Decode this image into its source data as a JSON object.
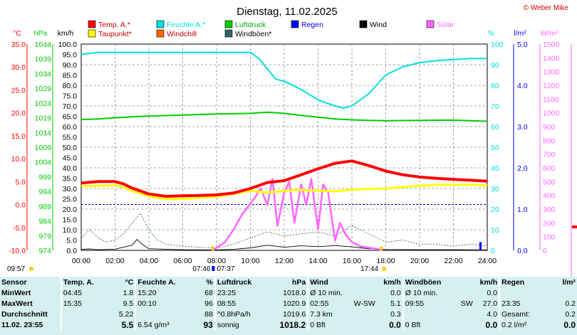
{
  "chart_data": {
    "type": "line",
    "title": "Dienstag, 11.02.2025",
    "credit": "© Weber Mike",
    "x_ticks": [
      "00:00",
      "02:00",
      "04:00",
      "06:00",
      "08:00",
      "10:00",
      "12:00",
      "14:00",
      "16:00",
      "18:00",
      "20:00",
      "22:00",
      "24:00"
    ],
    "xlim": [
      0,
      24
    ],
    "legend": [
      {
        "name": "Temp. A.*",
        "color": "#ff0000"
      },
      {
        "name": "Feuchte A.*",
        "color": "#00e0e0"
      },
      {
        "name": "Luftdruck",
        "color": "#00cc00"
      },
      {
        "name": "Regen",
        "color": "#0000ff"
      },
      {
        "name": "Wind",
        "color": "#000000"
      },
      {
        "name": "Solar",
        "color": "#ff66ff"
      },
      {
        "name": "Taupunkt*",
        "color": "#ffff00"
      },
      {
        "name": "Windchill",
        "color": "#ff6600"
      },
      {
        "name": "Windböen*",
        "color": "#336666"
      }
    ],
    "axes": {
      "temp": {
        "unit": "°C",
        "ticks": [
          "35.0",
          "30.0",
          "25.0",
          "20.0",
          "15.0",
          "10.0",
          "5.0",
          "0.0",
          "-5.0",
          "-10.0"
        ],
        "color": "#ff0000"
      },
      "pressure": {
        "unit": "hPa",
        "ticks": [
          "1044",
          "1039",
          "1034",
          "1029",
          "1024",
          "1019",
          "1014",
          "1009",
          "1004",
          "999",
          "994",
          "989",
          "984",
          "979",
          "974"
        ],
        "color": "#00cc00"
      },
      "wind": {
        "unit": "km/h",
        "ticks": [
          "100.0",
          "95.0",
          "90.0",
          "85.0",
          "80.0",
          "75.0",
          "70.0",
          "65.0",
          "60.0",
          "55.0",
          "50.0",
          "45.0",
          "40.0",
          "35.0",
          "30.0",
          "25.0",
          "20.0",
          "15.0",
          "10.0",
          "5.0",
          "0.0"
        ],
        "color": "#000000"
      },
      "humidity": {
        "unit": "%",
        "ticks": [
          "100",
          "90",
          "80",
          "70",
          "60",
          "50",
          "40",
          "30",
          "20",
          "10",
          "0"
        ],
        "color": "#00e0e0"
      },
      "rain": {
        "unit": "l/m²",
        "ticks": [
          "5.0",
          "4.0",
          "3.0",
          "2.0",
          "1.0",
          "0.0"
        ],
        "color": "#0000ff"
      },
      "solar": {
        "unit": "W/m²",
        "ticks": [
          "1500",
          "1400",
          "1300",
          "1200",
          "1100",
          "1000",
          "900",
          "800",
          "700",
          "600",
          "500",
          "400",
          "300",
          "200",
          "100",
          "0"
        ],
        "color": "#ff66ff"
      }
    },
    "series": [
      {
        "name": "Temp. A.*",
        "axis": "temp",
        "x": [
          0,
          1,
          2,
          2.5,
          3,
          4,
          5,
          6,
          7,
          8,
          9,
          10,
          11,
          12,
          13,
          14,
          15,
          16,
          17,
          18,
          19,
          20,
          21,
          22,
          23,
          24
        ],
        "y": [
          4.7,
          5.0,
          5.0,
          4.5,
          3.6,
          2.3,
          1.8,
          1.9,
          2.0,
          2.1,
          2.5,
          3.5,
          4.8,
          5.2,
          6.5,
          7.8,
          9.0,
          9.5,
          8.5,
          7.3,
          6.5,
          6.0,
          5.7,
          5.5,
          5.3,
          5.1
        ]
      },
      {
        "name": "Taupunkt*",
        "axis": "temp",
        "x": [
          0,
          2,
          2.5,
          3,
          4,
          5,
          6,
          7,
          8,
          9,
          10,
          11,
          12,
          13,
          14,
          15,
          16,
          17,
          18,
          19,
          20,
          21,
          22,
          23,
          24
        ],
        "y": [
          4.0,
          4.2,
          3.8,
          3.0,
          1.8,
          1.2,
          1.2,
          1.5,
          1.7,
          2.3,
          3.0,
          2.6,
          3.0,
          3.2,
          3.0,
          2.9,
          3.2,
          3.4,
          3.5,
          3.8,
          4.1,
          4.3,
          4.3,
          4.3,
          4.2
        ]
      },
      {
        "name": "Feuchte A.*",
        "axis": "humidity",
        "x": [
          0,
          1,
          4,
          8,
          10,
          10.5,
          11,
          11.5,
          12,
          13,
          14,
          15,
          15.5,
          16,
          17,
          18,
          19,
          20,
          21,
          22,
          23,
          24
        ],
        "y": [
          95,
          96,
          96,
          96,
          96,
          93,
          88,
          83,
          82,
          78,
          73,
          70,
          69,
          70,
          76,
          85,
          89,
          91,
          92,
          92.5,
          93,
          93
        ]
      },
      {
        "name": "Luftdruck",
        "axis": "pressure",
        "x": [
          0,
          1,
          2,
          3,
          4,
          6,
          8,
          10,
          11,
          12,
          13,
          14,
          15,
          16,
          17,
          18,
          20,
          22,
          23,
          24
        ],
        "y": [
          1018.4,
          1018.6,
          1019.0,
          1019.3,
          1019.6,
          1019.9,
          1020.3,
          1020.5,
          1020.9,
          1020.5,
          1019.8,
          1019.2,
          1018.6,
          1018.3,
          1018.1,
          1018.0,
          1018.1,
          1018.2,
          1018.0,
          1017.8
        ]
      },
      {
        "name": "Solar",
        "axis": "solar",
        "x": [
          7.77,
          8.5,
          9,
          9.5,
          10,
          10.3,
          10.6,
          11,
          11.3,
          11.6,
          12,
          12.3,
          12.6,
          13,
          13.3,
          13.6,
          14,
          14.3,
          14.6,
          15,
          15.3,
          15.6,
          16,
          16.5,
          17,
          17.5,
          17.8
        ],
        "y": [
          0,
          60,
          150,
          260,
          340,
          390,
          450,
          330,
          520,
          180,
          420,
          500,
          200,
          480,
          330,
          520,
          150,
          480,
          420,
          70,
          200,
          120,
          60,
          30,
          20,
          10,
          0
        ]
      },
      {
        "name": "Wind",
        "axis": "wind",
        "x": [
          0,
          0.5,
          1,
          2,
          2.5,
          3,
          3.3,
          3.6,
          4,
          6,
          8,
          9,
          10,
          11,
          12,
          13,
          14,
          15,
          16,
          17,
          18,
          20,
          22,
          24
        ],
        "y": [
          0.5,
          0.7,
          0.3,
          0.6,
          1.5,
          2.5,
          5.3,
          3.0,
          0.8,
          0.3,
          0.2,
          0.5,
          1.2,
          2.5,
          1.5,
          2.2,
          1.8,
          2.3,
          1.7,
          0.8,
          0.4,
          0.3,
          0.3,
          0.2
        ]
      },
      {
        "name": "Windböen*",
        "axis": "wind",
        "x": [
          0,
          0.5,
          1,
          1.5,
          2,
          2.5,
          3,
          3.5,
          4,
          4.5,
          5,
          6,
          8,
          9,
          10,
          11,
          12,
          13,
          14,
          15,
          16,
          17,
          18,
          19,
          20,
          21,
          22,
          23,
          24
        ],
        "y": [
          6,
          10,
          6,
          4,
          5,
          8,
          13,
          18,
          10,
          5,
          3,
          2,
          1,
          3,
          6,
          9,
          7,
          8,
          9,
          7,
          12,
          8,
          4,
          5,
          3,
          3,
          2,
          3,
          2
        ]
      },
      {
        "name": "Regen",
        "axis": "rain",
        "x": [
          23.6,
          23.6
        ],
        "y": [
          0,
          0.2
        ]
      }
    ],
    "x_markers": {
      "left": "09:57",
      "sunrise": "07:46",
      "mid": "07:37",
      "sunset": "17:44"
    },
    "dashed_reference": {
      "axis": "temp",
      "value": 0
    }
  },
  "table": {
    "headers": {
      "sensor": "Sensor",
      "temp": "Temp. A.",
      "temp_unit": "°C",
      "hum": "Feuchte A.",
      "hum_unit": "%",
      "press": "Luftdruck",
      "press_unit": "hPa",
      "wind": "Wind",
      "wind_unit": "km/h",
      "gust": "Windböen",
      "gust_unit": "km/h",
      "rain": "Regen",
      "rain_unit": "l/m²"
    },
    "rows": [
      {
        "label": "MinWert",
        "t_time": "04:45",
        "t_val": "1.8",
        "h_time": "15:20",
        "h_val": "68",
        "p_time": "23:25",
        "p_val": "1018.0",
        "w_a": "Ø 10 min.",
        "w_val": "0.0",
        "g_a": "Ø 10 min.",
        "g_val": "0.0",
        "r_a": "",
        "r_val": ""
      },
      {
        "label": "MaxWert",
        "t_time": "15:35",
        "t_val": "9.5",
        "h_time": "00:10",
        "h_val": "96",
        "p_time": "08:55",
        "p_val": "1020.9",
        "w_a": "02:55",
        "w_dir": "W-SW",
        "w_val": "5.1",
        "g_a": "09:55",
        "g_dir": "SW",
        "g_val": "27.0",
        "r_a": "23:35",
        "r_val": "0.2"
      },
      {
        "label": "Durchschnitt",
        "t_time": "",
        "t_val": "5.22",
        "h_time": "",
        "h_val": "88",
        "p_time": "^0.8hPa/h",
        "p_val": "1019.6",
        "w_a": "7.3 km",
        "w_val": "0.3",
        "g_a": "",
        "g_val": "4.0",
        "r_a": "Gesamt:",
        "r_val": "0.2"
      },
      {
        "label": "11.02. 23:55",
        "t_time": "",
        "t_val": "5.5",
        "h_time": "6.54 g/m³",
        "h_val": "93",
        "p_time": "sonnig",
        "p_val": "1018.2",
        "w_a": "0 Bft",
        "w_val": "0.0",
        "g_a": "0 Bft",
        "g_val": "0.0",
        "r_a": "0.2 l/m²",
        "r_val": "0.0"
      }
    ]
  }
}
